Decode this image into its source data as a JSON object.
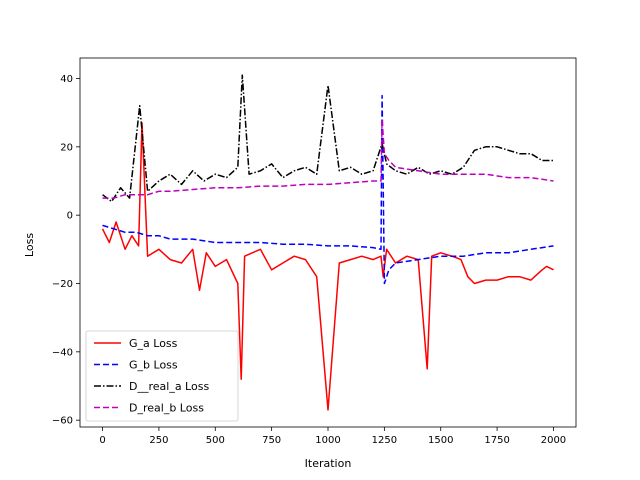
{
  "chart_data": {
    "type": "line",
    "title": "",
    "xlabel": "Iteration",
    "ylabel": "Loss",
    "xlim": [
      -100,
      2100
    ],
    "ylim": [
      -62,
      46
    ],
    "xticks": [
      0,
      250,
      500,
      750,
      1000,
      1250,
      1500,
      1750,
      2000
    ],
    "yticks": [
      -60,
      -40,
      -20,
      0,
      20,
      40
    ],
    "grid": false,
    "legend_position": "lower-left",
    "series": [
      {
        "name": "G_a Loss",
        "color": "#ff0000",
        "dash": "solid",
        "x": [
          0,
          30,
          60,
          100,
          130,
          160,
          175,
          200,
          250,
          300,
          350,
          400,
          430,
          460,
          500,
          550,
          600,
          615,
          630,
          700,
          750,
          800,
          850,
          900,
          950,
          1000,
          1050,
          1100,
          1150,
          1200,
          1235,
          1245,
          1260,
          1300,
          1350,
          1400,
          1440,
          1460,
          1500,
          1550,
          1590,
          1620,
          1650,
          1700,
          1750,
          1800,
          1850,
          1900,
          1950,
          1970,
          2000
        ],
        "y": [
          -4,
          -8,
          -2,
          -10,
          -6,
          -9,
          27,
          -12,
          -10,
          -13,
          -14,
          -10,
          -22,
          -11,
          -15,
          -13,
          -20,
          -48,
          -12,
          -10,
          -16,
          -14,
          -12,
          -13,
          -18,
          -57,
          -14,
          -13,
          -12,
          -13,
          -12,
          -18,
          -10,
          -14,
          -12,
          -13,
          -45,
          -12,
          -11,
          -12,
          -13,
          -18,
          -20,
          -19,
          -19,
          -18,
          -18,
          -19,
          -16,
          -15,
          -16
        ]
      },
      {
        "name": "G_b Loss",
        "color": "#0000ff",
        "dash": "6,3",
        "x": [
          0,
          50,
          100,
          150,
          200,
          250,
          300,
          400,
          500,
          600,
          700,
          800,
          900,
          1000,
          1100,
          1200,
          1235,
          1240,
          1250,
          1270,
          1300,
          1400,
          1500,
          1600,
          1700,
          1800,
          1900,
          2000
        ],
        "y": [
          -3,
          -4,
          -5,
          -5,
          -6,
          -6,
          -7,
          -7,
          -8,
          -8,
          -8,
          -8.5,
          -8.5,
          -9,
          -9,
          -9.5,
          -10,
          35,
          -20,
          -16,
          -14,
          -13,
          -12,
          -12,
          -11,
          -11,
          -10,
          -9
        ]
      },
      {
        "name": "D__real_a Loss",
        "color": "#000000",
        "dash": "7,2,1.5,2",
        "x": [
          0,
          40,
          80,
          120,
          165,
          200,
          250,
          300,
          350,
          400,
          450,
          500,
          550,
          600,
          620,
          650,
          700,
          750,
          800,
          850,
          900,
          950,
          1000,
          1050,
          1100,
          1150,
          1200,
          1240,
          1260,
          1300,
          1350,
          1400,
          1450,
          1500,
          1550,
          1600,
          1650,
          1700,
          1750,
          1800,
          1850,
          1900,
          1950,
          2000
        ],
        "y": [
          6,
          4,
          8,
          5,
          32,
          7,
          10,
          12,
          9,
          13,
          10,
          12,
          11,
          14,
          41,
          12,
          13,
          15,
          11,
          13,
          14,
          12,
          38,
          13,
          14,
          12,
          13,
          21,
          15,
          13,
          12,
          14,
          12,
          13,
          12,
          14,
          19,
          20,
          20,
          19,
          18,
          18,
          16,
          16
        ]
      },
      {
        "name": "D_real_b Loss",
        "color": "#bf00bf",
        "dash": "6,3",
        "x": [
          0,
          50,
          100,
          150,
          200,
          250,
          300,
          400,
          500,
          600,
          700,
          800,
          900,
          1000,
          1100,
          1200,
          1235,
          1240,
          1250,
          1270,
          1300,
          1400,
          1500,
          1600,
          1700,
          1800,
          1900,
          2000
        ],
        "y": [
          5,
          5,
          6,
          6,
          6,
          7,
          7,
          7.5,
          8,
          8,
          8.5,
          8.5,
          9,
          9,
          9.5,
          10,
          10,
          28,
          18,
          16,
          14,
          13,
          12,
          12,
          12,
          11,
          11,
          10
        ]
      }
    ]
  }
}
